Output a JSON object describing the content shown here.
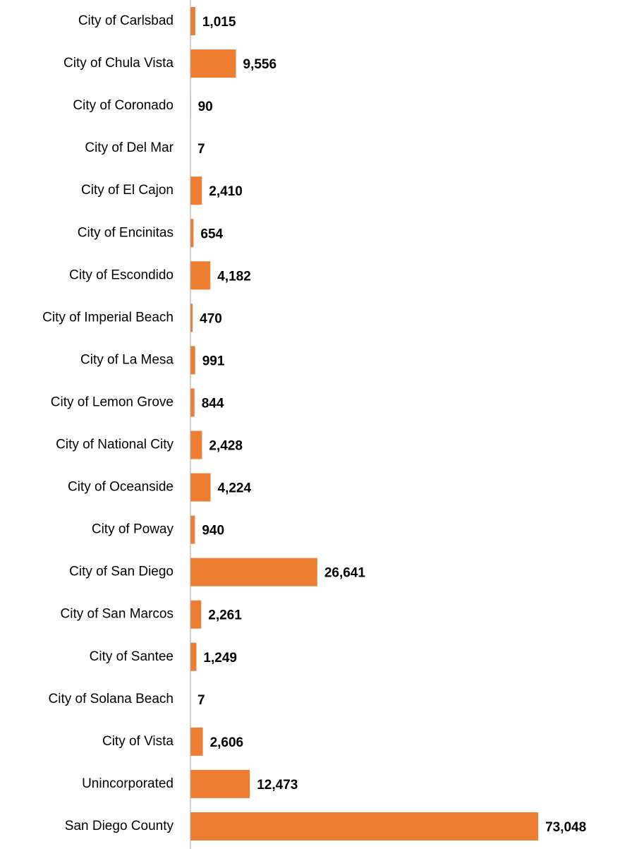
{
  "chart_data": {
    "type": "bar",
    "orientation": "horizontal",
    "categories": [
      "City of Carlsbad",
      "City of Chula Vista",
      "City of Coronado",
      "City of Del Mar",
      "City of El Cajon",
      "City of Encinitas",
      "City of Escondido",
      "City of Imperial Beach",
      "City of La Mesa",
      "City of Lemon Grove",
      "City of National City",
      "City of Oceanside",
      "City of Poway",
      "City of San Diego",
      "City of San Marcos",
      "City of Santee",
      "City of Solana Beach",
      "City of Vista",
      "Unincorporated",
      "San Diego County"
    ],
    "values": [
      1015,
      9556,
      90,
      7,
      2410,
      654,
      4182,
      470,
      991,
      844,
      2428,
      4224,
      940,
      26641,
      2261,
      1249,
      7,
      2606,
      12473,
      73048
    ],
    "value_labels": [
      "1,015",
      "9,556",
      "90",
      "7",
      "2,410",
      "654",
      "4,182",
      "470",
      "991",
      "844",
      "2,428",
      "4,224",
      "940",
      "26,641",
      "2,261",
      "1,249",
      "7",
      "2,606",
      "12,473",
      "73,048"
    ],
    "color": "#ed7d31",
    "xlim": [
      0,
      80000
    ]
  }
}
